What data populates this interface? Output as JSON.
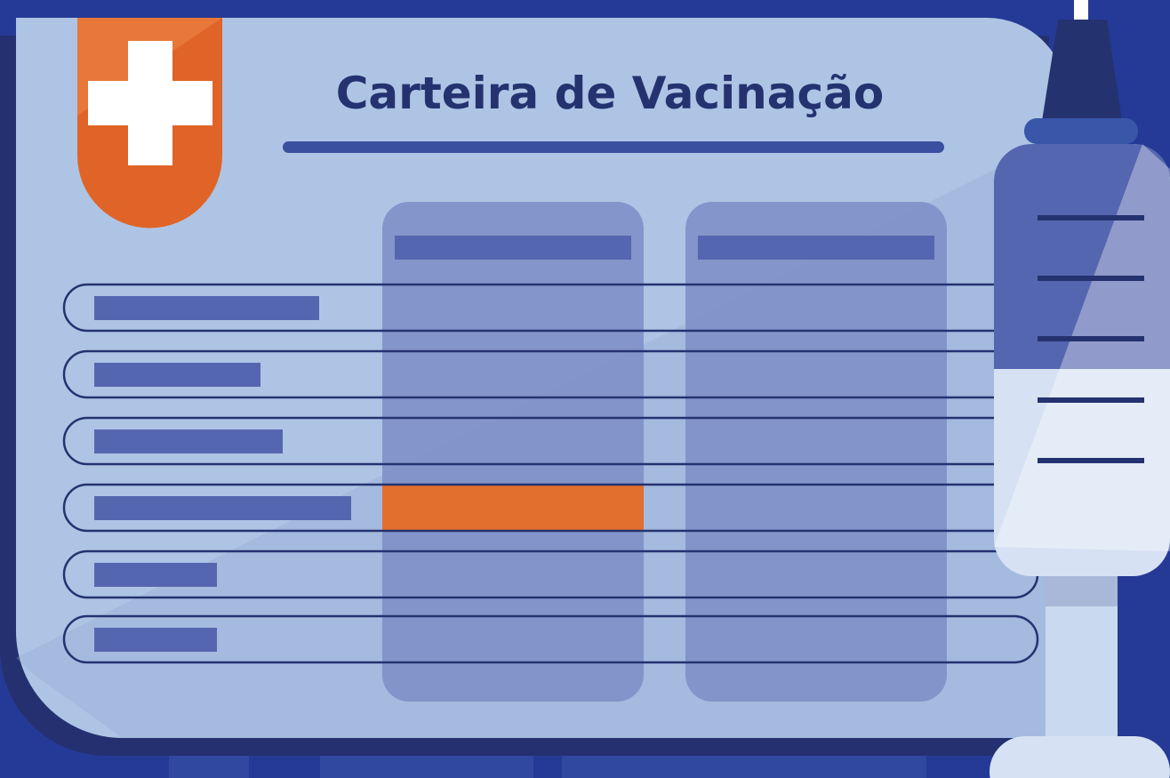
{
  "title": "Carteira de Vacinação"
}
